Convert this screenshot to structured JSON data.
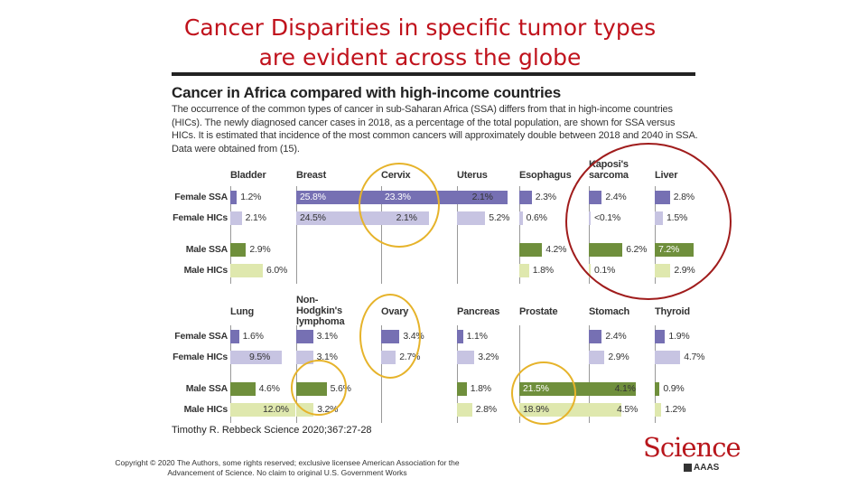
{
  "slide": {
    "title_line1": "Cancer Disparities in specific tumor types",
    "title_line2": "are evident across the globe",
    "credit": "Timothy R. Rebbeck Science 2020;367:27-28",
    "copyright": "Copyright © 2020 The Authors, some rights reserved; exclusive licensee American Association for the Advancement of Science. No claim to original U.S. Government Works",
    "logo": "Science",
    "logo_sub": "AAAS"
  },
  "colors": {
    "female_ssa": "#7670b3",
    "female_hics": "#c7c4e2",
    "male_ssa": "#6f8f3c",
    "male_hics": "#dfe8ae",
    "highlight_yellow": "#e6b32a",
    "highlight_red": "#a01c1c",
    "title_red": "#c0121c"
  },
  "chart_data": {
    "type": "bar",
    "title": "Cancer in Africa compared with high-income countries",
    "description": "The occurrence of the common types of cancer in sub-Saharan Africa (SSA) differs from that in high-income countries (HICs). The newly diagnosed cancer cases in 2018, as a percentage of the total population, are shown for SSA versus HICs. It is estimated that incidence of the most common cancers will approximately double between 2018 and 2040 in SSA. Data were obtained from (15).",
    "row_labels": [
      "Female SSA",
      "Female HICs",
      "Male SSA",
      "Male HICs"
    ],
    "panels": [
      {
        "cancers": [
          {
            "name": "Bladder",
            "values": [
              1.2,
              2.1,
              2.9,
              6.0
            ],
            "labels": [
              "1.2%",
              "2.1%",
              "2.9%",
              "6.0%"
            ]
          },
          {
            "name": "Breast",
            "values": [
              25.8,
              24.5,
              null,
              null
            ],
            "labels": [
              "25.8%",
              "24.5%",
              "",
              ""
            ]
          },
          {
            "name": "Cervix",
            "values": [
              23.3,
              2.1,
              null,
              null
            ],
            "labels": [
              "23.3%",
              "2.1%",
              "",
              ""
            ]
          },
          {
            "name": "Uterus",
            "values": [
              2.1,
              5.2,
              null,
              null
            ],
            "labels": [
              "2.1%",
              "5.2%",
              "",
              ""
            ]
          },
          {
            "name": "Esophagus",
            "values": [
              2.3,
              0.6,
              4.2,
              1.8
            ],
            "labels": [
              "2.3%",
              "0.6%",
              "4.2%",
              "1.8%"
            ]
          },
          {
            "name": "Kaposi's sarcoma",
            "values": [
              2.4,
              0.05,
              6.2,
              0.1
            ],
            "labels": [
              "2.4%",
              "<0.1%",
              "6.2%",
              "0.1%"
            ]
          },
          {
            "name": "Liver",
            "values": [
              2.8,
              1.5,
              7.2,
              2.9
            ],
            "labels": [
              "2.8%",
              "1.5%",
              "7.2%",
              "2.9%"
            ]
          }
        ]
      },
      {
        "cancers": [
          {
            "name": "Lung",
            "values": [
              1.6,
              9.5,
              4.6,
              12.0
            ],
            "labels": [
              "1.6%",
              "9.5%",
              "4.6%",
              "12.0%"
            ]
          },
          {
            "name": "Non-Hodgkin's lymphoma",
            "values": [
              3.1,
              3.1,
              5.6,
              3.2
            ],
            "labels": [
              "3.1%",
              "3.1%",
              "5.6%",
              "3.2%"
            ]
          },
          {
            "name": "Ovary",
            "values": [
              3.4,
              2.7,
              null,
              null
            ],
            "labels": [
              "3.4%",
              "2.7%",
              "",
              ""
            ]
          },
          {
            "name": "Pancreas",
            "values": [
              1.1,
              3.2,
              1.8,
              2.8
            ],
            "labels": [
              "1.1%",
              "3.2%",
              "1.8%",
              "2.8%"
            ]
          },
          {
            "name": "Prostate",
            "values": [
              null,
              null,
              21.5,
              18.9
            ],
            "labels": [
              "",
              "",
              "21.5%",
              "18.9%"
            ]
          },
          {
            "name": "Stomach",
            "values": [
              2.4,
              2.9,
              4.1,
              4.5
            ],
            "labels": [
              "2.4%",
              "2.9%",
              "4.1%",
              "4.5%"
            ]
          },
          {
            "name": "Thyroid",
            "values": [
              1.9,
              4.7,
              0.9,
              1.2
            ],
            "labels": [
              "1.9%",
              "4.7%",
              "0.9%",
              "1.2%"
            ]
          }
        ]
      }
    ],
    "highlighted": {
      "yellow": [
        "Cervix",
        "Ovary",
        "Non-Hodgkin's lymphoma",
        "Prostate"
      ],
      "red": [
        "Kaposi's sarcoma",
        "Liver"
      ]
    }
  }
}
